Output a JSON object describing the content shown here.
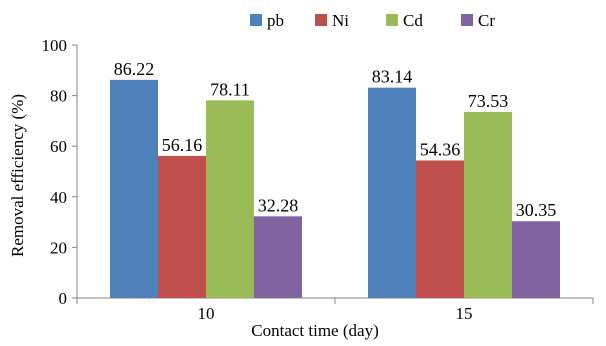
{
  "chart_data": {
    "type": "bar",
    "title": "",
    "xlabel": "Contact time (day)",
    "ylabel": "Removal efficiency (%)",
    "ylim": [
      0,
      100
    ],
    "yticks": [
      0,
      20,
      40,
      60,
      80,
      100
    ],
    "categories": [
      "10",
      "15"
    ],
    "series": [
      {
        "name": "pb",
        "color": "#4F81BD",
        "values": [
          86.22,
          83.14
        ],
        "labels": [
          "86.22",
          "83.14"
        ]
      },
      {
        "name": "Ni",
        "color": "#C0504D",
        "values": [
          56.16,
          54.36
        ],
        "labels": [
          "56.16",
          "54.36"
        ]
      },
      {
        "name": "Cd",
        "color": "#9BBB59",
        "values": [
          78.11,
          73.53
        ],
        "labels": [
          "78.11",
          "73.53"
        ]
      },
      {
        "name": "Cr",
        "color": "#8064A2",
        "values": [
          32.28,
          30.35
        ],
        "labels": [
          "32.28",
          "30.35"
        ]
      }
    ],
    "legend_position": "top",
    "grid": false
  }
}
